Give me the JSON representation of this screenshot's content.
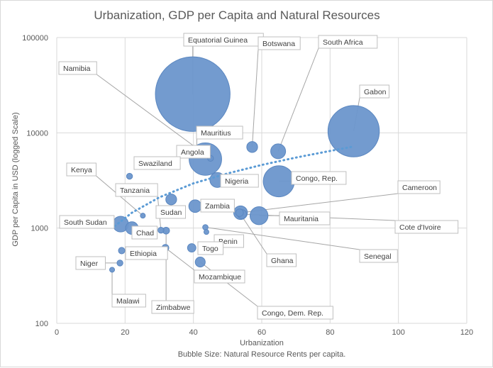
{
  "chart_data": {
    "type": "bubble",
    "title": "Urbanization, GDP per Capita and Natural Resources",
    "xlabel": "Urbanization",
    "ylabel": "GDP per Capita in USD (logged Scale)",
    "footnote": "Bubble Size: Natural Resource Rents per capita.",
    "xlim": [
      0,
      120
    ],
    "ylim": [
      100,
      100000
    ],
    "yscale": "log",
    "x_ticks": [
      "0",
      "20",
      "40",
      "60",
      "80",
      "100",
      "120"
    ],
    "y_ticks": [
      "100",
      "1000",
      "10000",
      "100000"
    ],
    "colors": {
      "bubble": "#6b96cc",
      "trend": "#5b9bd5"
    },
    "trendline": {
      "style": "dotted",
      "points": [
        [
          17,
          1050
        ],
        [
          22,
          1450
        ],
        [
          30,
          2100
        ],
        [
          40,
          2950
        ],
        [
          50,
          3750
        ],
        [
          60,
          4600
        ],
        [
          70,
          5500
        ],
        [
          80,
          6450
        ],
        [
          87,
          7200
        ]
      ]
    },
    "points": [
      {
        "name": "Equatorial Guinea",
        "x": 39.8,
        "y": 25500,
        "size": 9500
      },
      {
        "name": "Gabon",
        "x": 86.9,
        "y": 10400,
        "size": 4500
      },
      {
        "name": "Botswana",
        "x": 57.2,
        "y": 7100,
        "size": 200
      },
      {
        "name": "South Africa",
        "x": 64.8,
        "y": 6400,
        "size": 380
      },
      {
        "name": "Mauritius",
        "x": 41.0,
        "y": 6100,
        "size": 25
      },
      {
        "name": "Angola",
        "x": 43.5,
        "y": 5300,
        "size": 1800
      },
      {
        "name": "Namibia",
        "x": 45.0,
        "y": 5400,
        "size": 60
      },
      {
        "name": "Nigeria",
        "x": 47.0,
        "y": 3200,
        "size": 380
      },
      {
        "name": "Congo, Rep.",
        "x": 65.0,
        "y": 3100,
        "size": 1650
      },
      {
        "name": "Swaziland",
        "x": 21.3,
        "y": 3500,
        "size": 60
      },
      {
        "name": "Sudan",
        "x": 33.5,
        "y": 2000,
        "size": 200
      },
      {
        "name": "Zambia",
        "x": 40.5,
        "y": 1700,
        "size": 270
      },
      {
        "name": "Kenya",
        "x": 25.2,
        "y": 1350,
        "size": 25
      },
      {
        "name": "Cameroon",
        "x": 53.8,
        "y": 1450,
        "size": 320
      },
      {
        "name": "Mauritania",
        "x": 59.2,
        "y": 1350,
        "size": 550
      },
      {
        "name": "Cote d'Ivoire",
        "x": 54.2,
        "y": 1400,
        "size": 140
      },
      {
        "name": "South Sudan",
        "x": 18.7,
        "y": 1100,
        "size": 420
      },
      {
        "name": "Chad",
        "x": 22.0,
        "y": 1000,
        "size": 270
      },
      {
        "name": "Senegal",
        "x": 43.5,
        "y": 1020,
        "size": 50
      },
      {
        "name": "Benin",
        "x": 43.8,
        "y": 910,
        "size": 40
      },
      {
        "name": "Tanzania",
        "x": 30.5,
        "y": 950,
        "size": 60
      },
      {
        "name": "Zimbabwe",
        "x": 32.0,
        "y": 940,
        "size": 80
      },
      {
        "name": "Togo",
        "x": 39.5,
        "y": 620,
        "size": 120
      },
      {
        "name": "Mozambique",
        "x": 31.8,
        "y": 620,
        "size": 80
      },
      {
        "name": "Ghana",
        "x": 53.5,
        "y": 1450,
        "size": 100
      },
      {
        "name": "Ethiopia",
        "x": 19.0,
        "y": 580,
        "size": 70
      },
      {
        "name": "Congo, Dem. Rep.",
        "x": 42.0,
        "y": 440,
        "size": 170
      },
      {
        "name": "Niger",
        "x": 18.5,
        "y": 430,
        "size": 60
      },
      {
        "name": "Malawi",
        "x": 16.2,
        "y": 365,
        "size": 35
      }
    ],
    "labels": [
      {
        "name": "Equatorial Guinea",
        "text": "Equatorial Guinea"
      },
      {
        "name": "Botswana",
        "text": "Botswana"
      },
      {
        "name": "South Africa",
        "text": "South Africa"
      },
      {
        "name": "Namibia",
        "text": "Namibia"
      },
      {
        "name": "Gabon",
        "text": "Gabon"
      },
      {
        "name": "Mauritius",
        "text": "Mauritius"
      },
      {
        "name": "Angola",
        "text": "Angola"
      },
      {
        "name": "Swaziland",
        "text": "Swaziland"
      },
      {
        "name": "Kenya",
        "text": "Kenya"
      },
      {
        "name": "Nigeria",
        "text": "Nigeria"
      },
      {
        "name": "Congo, Rep.",
        "text": "Congo, Rep."
      },
      {
        "name": "Tanzania",
        "text": "Tanzania"
      },
      {
        "name": "Cameroon",
        "text": "Cameroon"
      },
      {
        "name": "Zambia",
        "text": "Zambia"
      },
      {
        "name": "Sudan",
        "text": "Sudan"
      },
      {
        "name": "South Sudan",
        "text": "South Sudan"
      },
      {
        "name": "Mauritania",
        "text": "Mauritania"
      },
      {
        "name": "Chad",
        "text": "Chad"
      },
      {
        "name": "Cote d'Ivoire",
        "text": "Cote d'Ivoire"
      },
      {
        "name": "Benin",
        "text": "Benin"
      },
      {
        "name": "Togo",
        "text": "Togo"
      },
      {
        "name": "Senegal",
        "text": "Senegal"
      },
      {
        "name": "Ethiopia",
        "text": "Ethiopia"
      },
      {
        "name": "Ghana",
        "text": "Ghana"
      },
      {
        "name": "Niger",
        "text": "Niger"
      },
      {
        "name": "Mozambique",
        "text": "Mozambique"
      },
      {
        "name": "Malawi",
        "text": "Malawi"
      },
      {
        "name": "Zimbabwe",
        "text": "Zimbabwe"
      },
      {
        "name": "Congo, Dem. Rep.",
        "text": "Congo, Dem. Rep."
      }
    ]
  }
}
